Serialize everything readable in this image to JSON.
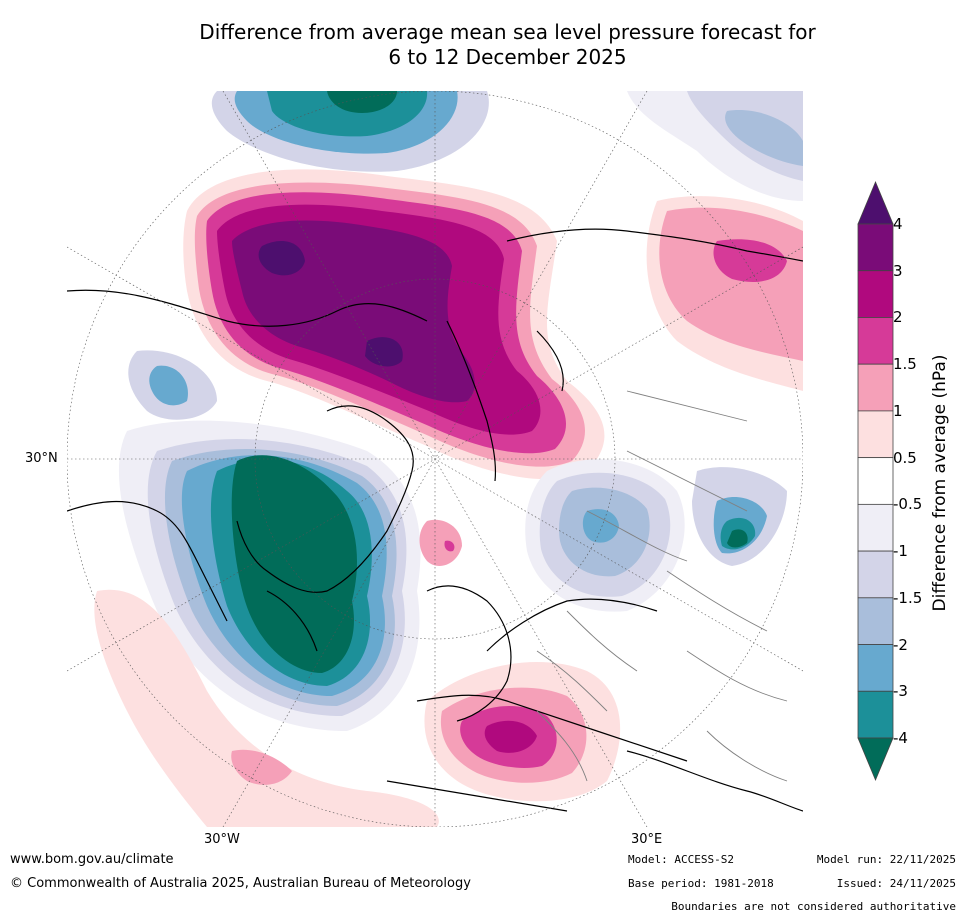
{
  "title_line1": "Difference from average mean sea level pressure forecast for",
  "title_line2": "6 to 12 December 2025",
  "colorbar": {
    "label": "Difference from average (hPa)",
    "ticks": [
      "4",
      "3",
      "2",
      "1.5",
      "1",
      "0.5",
      "-0.5",
      "-1",
      "-1.5",
      "-2",
      "-3",
      "-4"
    ],
    "colors": [
      "#4d0f6e",
      "#7a0c78",
      "#b0097e",
      "#d63a98",
      "#f5a0b8",
      "#fde0e0",
      "#ffffff",
      "#efeef6",
      "#d3d4e8",
      "#a9bedb",
      "#67a9cf",
      "#1c9099",
      "#016c59"
    ]
  },
  "map": {
    "lat_label": "30°N",
    "lon_label_left": "30°W",
    "lon_label_right": "30°E"
  },
  "footer": {
    "website": "www.bom.gov.au/climate",
    "copyright": "© Commonwealth of Australia 2025, Australian Bureau of Meteorology",
    "model": "Model: ACCESS-S2",
    "base_period": "Base period: 1981-2018",
    "model_run": "Model run: 22/11/2025",
    "issued": "Issued: 24/11/2025",
    "disclaimer": "Boundaries are not considered authoritative"
  }
}
